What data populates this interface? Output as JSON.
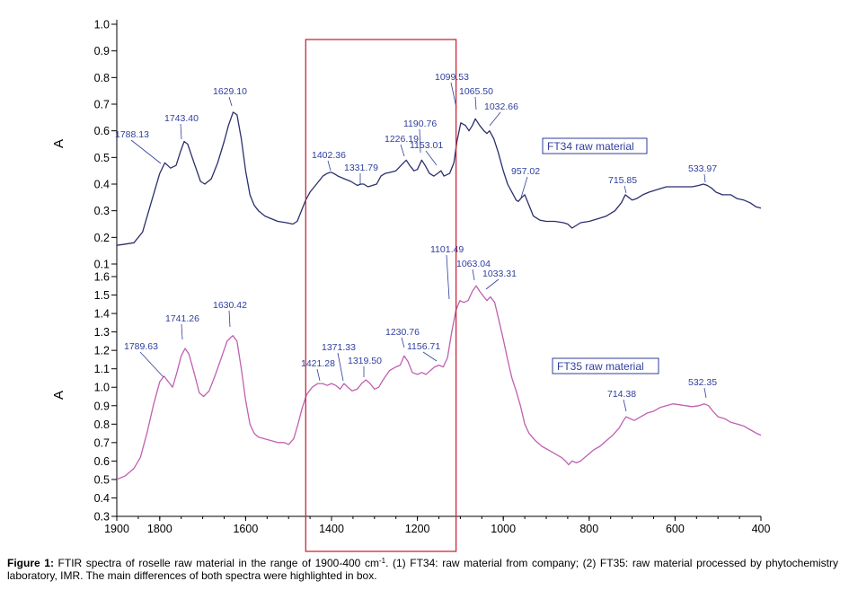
{
  "chart_data": {
    "type": "line",
    "x_axis": {
      "range": [
        1900,
        400
      ],
      "reversed": true,
      "ticks": [
        1900,
        1800,
        1600,
        1400,
        1200,
        1000,
        800,
        600,
        400
      ],
      "tick_labels": [
        "1900",
        "1800",
        "1600",
        "1400",
        "1200",
        "1000",
        "800",
        "600",
        "400"
      ]
    },
    "panels": [
      {
        "id": "FT34",
        "ylabel": "A",
        "ylim": [
          0.1,
          1.0
        ],
        "yticks": [
          "0.1",
          "0.2",
          "0.3",
          "0.4",
          "0.5",
          "0.6",
          "0.7",
          "0.8",
          "0.9",
          "1.0"
        ],
        "ytick_values": [
          0.1,
          0.2,
          0.3,
          0.4,
          0.5,
          0.6,
          0.7,
          0.8,
          0.9,
          1.0
        ],
        "series_label": "FT34 raw material",
        "color": "#2b2f6b",
        "points": [
          [
            1900,
            0.17
          ],
          [
            1880,
            0.175
          ],
          [
            1860,
            0.18
          ],
          [
            1840,
            0.22
          ],
          [
            1820,
            0.33
          ],
          [
            1800,
            0.44
          ],
          [
            1788,
            0.48
          ],
          [
            1775,
            0.46
          ],
          [
            1762,
            0.47
          ],
          [
            1752,
            0.52
          ],
          [
            1743,
            0.56
          ],
          [
            1735,
            0.55
          ],
          [
            1720,
            0.48
          ],
          [
            1705,
            0.41
          ],
          [
            1695,
            0.4
          ],
          [
            1680,
            0.42
          ],
          [
            1665,
            0.48
          ],
          [
            1650,
            0.56
          ],
          [
            1640,
            0.62
          ],
          [
            1629,
            0.67
          ],
          [
            1620,
            0.66
          ],
          [
            1610,
            0.57
          ],
          [
            1600,
            0.45
          ],
          [
            1590,
            0.36
          ],
          [
            1580,
            0.32
          ],
          [
            1570,
            0.3
          ],
          [
            1555,
            0.28
          ],
          [
            1540,
            0.27
          ],
          [
            1525,
            0.26
          ],
          [
            1505,
            0.255
          ],
          [
            1490,
            0.25
          ],
          [
            1480,
            0.26
          ],
          [
            1470,
            0.3
          ],
          [
            1460,
            0.34
          ],
          [
            1450,
            0.37
          ],
          [
            1440,
            0.39
          ],
          [
            1430,
            0.41
          ],
          [
            1420,
            0.43
          ],
          [
            1410,
            0.44
          ],
          [
            1402,
            0.445
          ],
          [
            1395,
            0.44
          ],
          [
            1385,
            0.43
          ],
          [
            1370,
            0.42
          ],
          [
            1355,
            0.41
          ],
          [
            1340,
            0.395
          ],
          [
            1332,
            0.4
          ],
          [
            1325,
            0.4
          ],
          [
            1315,
            0.39
          ],
          [
            1305,
            0.395
          ],
          [
            1295,
            0.4
          ],
          [
            1285,
            0.43
          ],
          [
            1275,
            0.44
          ],
          [
            1262,
            0.445
          ],
          [
            1250,
            0.45
          ],
          [
            1238,
            0.47
          ],
          [
            1226,
            0.49
          ],
          [
            1218,
            0.47
          ],
          [
            1208,
            0.45
          ],
          [
            1200,
            0.455
          ],
          [
            1190,
            0.49
          ],
          [
            1182,
            0.47
          ],
          [
            1172,
            0.44
          ],
          [
            1162,
            0.43
          ],
          [
            1153,
            0.44
          ],
          [
            1145,
            0.45
          ],
          [
            1138,
            0.43
          ],
          [
            1125,
            0.44
          ],
          [
            1115,
            0.48
          ],
          [
            1108,
            0.56
          ],
          [
            1099,
            0.63
          ],
          [
            1088,
            0.62
          ],
          [
            1080,
            0.6
          ],
          [
            1072,
            0.62
          ],
          [
            1065,
            0.645
          ],
          [
            1055,
            0.62
          ],
          [
            1045,
            0.6
          ],
          [
            1038,
            0.59
          ],
          [
            1032,
            0.6
          ],
          [
            1022,
            0.57
          ],
          [
            1012,
            0.52
          ],
          [
            1000,
            0.45
          ],
          [
            990,
            0.4
          ],
          [
            980,
            0.37
          ],
          [
            970,
            0.34
          ],
          [
            965,
            0.335
          ],
          [
            957,
            0.35
          ],
          [
            950,
            0.36
          ],
          [
            940,
            0.32
          ],
          [
            930,
            0.28
          ],
          [
            915,
            0.265
          ],
          [
            900,
            0.26
          ],
          [
            880,
            0.26
          ],
          [
            860,
            0.255
          ],
          [
            850,
            0.25
          ],
          [
            840,
            0.235
          ],
          [
            830,
            0.245
          ],
          [
            820,
            0.255
          ],
          [
            800,
            0.26
          ],
          [
            780,
            0.27
          ],
          [
            760,
            0.28
          ],
          [
            740,
            0.3
          ],
          [
            725,
            0.33
          ],
          [
            716,
            0.36
          ],
          [
            708,
            0.35
          ],
          [
            700,
            0.34
          ],
          [
            690,
            0.345
          ],
          [
            675,
            0.36
          ],
          [
            660,
            0.37
          ],
          [
            640,
            0.38
          ],
          [
            620,
            0.39
          ],
          [
            600,
            0.39
          ],
          [
            580,
            0.39
          ],
          [
            560,
            0.39
          ],
          [
            545,
            0.395
          ],
          [
            534,
            0.4
          ],
          [
            525,
            0.395
          ],
          [
            515,
            0.385
          ],
          [
            505,
            0.37
          ],
          [
            490,
            0.36
          ],
          [
            470,
            0.36
          ],
          [
            455,
            0.345
          ],
          [
            440,
            0.34
          ],
          [
            425,
            0.33
          ],
          [
            412,
            0.315
          ],
          [
            400,
            0.31
          ]
        ],
        "peak_labels": [
          {
            "x": 1788.13,
            "text": "1788.13"
          },
          {
            "x": 1743.4,
            "text": "1743.40"
          },
          {
            "x": 1629.1,
            "text": "1629.10"
          },
          {
            "x": 1402.36,
            "text": "1402.36"
          },
          {
            "x": 1331.79,
            "text": "1331.79"
          },
          {
            "x": 1226.19,
            "text": "1226.19"
          },
          {
            "x": 1190.76,
            "text": "1190.76"
          },
          {
            "x": 1153.01,
            "text": "1153.01"
          },
          {
            "x": 1099.53,
            "text": "1099.53"
          },
          {
            "x": 1065.5,
            "text": "1065.50"
          },
          {
            "x": 1032.66,
            "text": "1032.66"
          },
          {
            "x": 957.02,
            "text": "957.02"
          },
          {
            "x": 715.85,
            "text": "715.85"
          },
          {
            "x": 533.97,
            "text": "533.97"
          }
        ]
      },
      {
        "id": "FT35",
        "ylabel": "A",
        "ylim": [
          0.3,
          1.6
        ],
        "yticks": [
          "0.3",
          "0.4",
          "0.5",
          "0.6",
          "0.7",
          "0.8",
          "0.9",
          "1.0",
          "1.1",
          "1.2",
          "1.3",
          "1.4",
          "1.5",
          "1.6"
        ],
        "ytick_values": [
          0.3,
          0.4,
          0.5,
          0.6,
          0.7,
          0.8,
          0.9,
          1.0,
          1.1,
          1.2,
          1.3,
          1.4,
          1.5,
          1.6
        ],
        "series_label": "FT35 raw material",
        "color": "#c060b0",
        "points": [
          [
            1900,
            0.5
          ],
          [
            1880,
            0.52
          ],
          [
            1860,
            0.56
          ],
          [
            1845,
            0.62
          ],
          [
            1830,
            0.75
          ],
          [
            1815,
            0.9
          ],
          [
            1800,
            1.03
          ],
          [
            1790,
            1.06
          ],
          [
            1780,
            1.03
          ],
          [
            1770,
            1.0
          ],
          [
            1760,
            1.08
          ],
          [
            1750,
            1.17
          ],
          [
            1741,
            1.21
          ],
          [
            1732,
            1.18
          ],
          [
            1720,
            1.08
          ],
          [
            1708,
            0.97
          ],
          [
            1698,
            0.95
          ],
          [
            1685,
            0.98
          ],
          [
            1670,
            1.07
          ],
          [
            1655,
            1.17
          ],
          [
            1643,
            1.25
          ],
          [
            1630,
            1.28
          ],
          [
            1620,
            1.25
          ],
          [
            1610,
            1.1
          ],
          [
            1600,
            0.93
          ],
          [
            1590,
            0.8
          ],
          [
            1580,
            0.75
          ],
          [
            1570,
            0.73
          ],
          [
            1555,
            0.72
          ],
          [
            1540,
            0.71
          ],
          [
            1525,
            0.7
          ],
          [
            1510,
            0.7
          ],
          [
            1500,
            0.69
          ],
          [
            1488,
            0.72
          ],
          [
            1478,
            0.8
          ],
          [
            1468,
            0.89
          ],
          [
            1458,
            0.96
          ],
          [
            1445,
            1.0
          ],
          [
            1432,
            1.02
          ],
          [
            1421,
            1.02
          ],
          [
            1410,
            1.01
          ],
          [
            1400,
            1.02
          ],
          [
            1390,
            1.01
          ],
          [
            1380,
            0.99
          ],
          [
            1371,
            1.02
          ],
          [
            1362,
            1.0
          ],
          [
            1352,
            0.98
          ],
          [
            1340,
            0.99
          ],
          [
            1330,
            1.02
          ],
          [
            1320,
            1.04
          ],
          [
            1310,
            1.02
          ],
          [
            1300,
            0.99
          ],
          [
            1290,
            1.0
          ],
          [
            1280,
            1.04
          ],
          [
            1265,
            1.09
          ],
          [
            1250,
            1.11
          ],
          [
            1240,
            1.12
          ],
          [
            1231,
            1.17
          ],
          [
            1222,
            1.14
          ],
          [
            1212,
            1.08
          ],
          [
            1200,
            1.07
          ],
          [
            1190,
            1.08
          ],
          [
            1180,
            1.07
          ],
          [
            1170,
            1.09
          ],
          [
            1160,
            1.11
          ],
          [
            1150,
            1.12
          ],
          [
            1140,
            1.11
          ],
          [
            1130,
            1.16
          ],
          [
            1120,
            1.3
          ],
          [
            1110,
            1.42
          ],
          [
            1101,
            1.47
          ],
          [
            1092,
            1.46
          ],
          [
            1082,
            1.47
          ],
          [
            1072,
            1.52
          ],
          [
            1063,
            1.55
          ],
          [
            1055,
            1.52
          ],
          [
            1045,
            1.49
          ],
          [
            1038,
            1.47
          ],
          [
            1030,
            1.49
          ],
          [
            1020,
            1.46
          ],
          [
            1012,
            1.38
          ],
          [
            1000,
            1.26
          ],
          [
            990,
            1.15
          ],
          [
            980,
            1.05
          ],
          [
            970,
            0.98
          ],
          [
            960,
            0.9
          ],
          [
            950,
            0.8
          ],
          [
            940,
            0.75
          ],
          [
            925,
            0.71
          ],
          [
            910,
            0.68
          ],
          [
            895,
            0.66
          ],
          [
            880,
            0.64
          ],
          [
            865,
            0.62
          ],
          [
            855,
            0.6
          ],
          [
            848,
            0.58
          ],
          [
            840,
            0.6
          ],
          [
            830,
            0.59
          ],
          [
            820,
            0.6
          ],
          [
            805,
            0.63
          ],
          [
            790,
            0.66
          ],
          [
            775,
            0.68
          ],
          [
            760,
            0.71
          ],
          [
            745,
            0.74
          ],
          [
            730,
            0.78
          ],
          [
            720,
            0.82
          ],
          [
            714,
            0.84
          ],
          [
            705,
            0.83
          ],
          [
            695,
            0.82
          ],
          [
            680,
            0.84
          ],
          [
            665,
            0.86
          ],
          [
            650,
            0.87
          ],
          [
            635,
            0.89
          ],
          [
            620,
            0.9
          ],
          [
            605,
            0.91
          ],
          [
            590,
            0.905
          ],
          [
            575,
            0.9
          ],
          [
            560,
            0.895
          ],
          [
            545,
            0.9
          ],
          [
            532,
            0.91
          ],
          [
            522,
            0.9
          ],
          [
            512,
            0.87
          ],
          [
            500,
            0.84
          ],
          [
            485,
            0.83
          ],
          [
            470,
            0.81
          ],
          [
            455,
            0.8
          ],
          [
            440,
            0.79
          ],
          [
            425,
            0.77
          ],
          [
            410,
            0.75
          ],
          [
            400,
            0.74
          ]
        ],
        "peak_labels": [
          {
            "x": 1789.63,
            "text": "1789.63"
          },
          {
            "x": 1741.26,
            "text": "1741.26"
          },
          {
            "x": 1630.42,
            "text": "1630.42"
          },
          {
            "x": 1421.28,
            "text": "1421.28"
          },
          {
            "x": 1371.33,
            "text": "1371.33"
          },
          {
            "x": 1319.5,
            "text": "1319.50"
          },
          {
            "x": 1230.76,
            "text": "1230.76"
          },
          {
            "x": 1156.71,
            "text": "1156.71"
          },
          {
            "x": 1101.49,
            "text": "1101.49"
          },
          {
            "x": 1063.04,
            "text": "1063.04"
          },
          {
            "x": 1033.31,
            "text": "1033.31"
          },
          {
            "x": 714.38,
            "text": "714.38"
          },
          {
            "x": 532.35,
            "text": "532.35"
          }
        ]
      }
    ],
    "highlight_box": {
      "x_range": [
        1110,
        1460
      ],
      "color": "#c8283c"
    }
  },
  "caption": {
    "label": "Figure 1:",
    "text_before_sup": " FTIR spectra of roselle raw material in the range of 1900-400 cm",
    "sup": "-1",
    "text_after_sup": ". (1) FT34: raw material from company; (2) FT35: raw material processed by phytochemistry laboratory, IMR. The main differences of both spectra were highlighted in box."
  }
}
